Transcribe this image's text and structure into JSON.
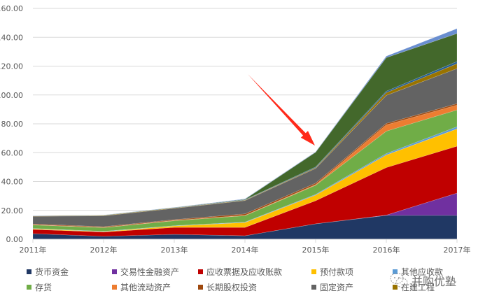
{
  "chart_data": {
    "type": "area",
    "stacked": true,
    "title": "",
    "xlabel": "",
    "ylabel": "",
    "categories": [
      "2011年",
      "2012年",
      "2013年",
      "2014年",
      "2015年",
      "2016年",
      "2017年"
    ],
    "ylim": [
      0,
      160
    ],
    "yticks": [
      "0.00",
      "20.00",
      "40.00",
      "60.00",
      "80.00",
      "100.00",
      "120.00",
      "140.00",
      "160.00"
    ],
    "grid": true,
    "legend_position": "bottom",
    "series": [
      {
        "name": "货币资金",
        "color": "#203864",
        "values": [
          3.9,
          2.0,
          3.4,
          2.4,
          10.7,
          16.5,
          16.5
        ]
      },
      {
        "name": "交易性金融资产",
        "color": "#7030A0",
        "values": [
          0,
          0,
          0,
          0,
          0,
          0.2,
          15.5
        ]
      },
      {
        "name": "应收票据及应收账款",
        "color": "#C00000",
        "values": [
          2.9,
          3.0,
          4.8,
          5.8,
          16.0,
          33.0,
          32.5
        ]
      },
      {
        "name": "预付款项",
        "color": "#FFC000",
        "values": [
          0.5,
          0.3,
          1.0,
          3.4,
          3.9,
          8.7,
          12.0
        ]
      },
      {
        "name": "其他应收款",
        "color": "#5B9BD5",
        "values": [
          0.2,
          0.2,
          0.2,
          0.3,
          0.5,
          1.0,
          1.5
        ]
      },
      {
        "name": "存货",
        "color": "#70AD47",
        "values": [
          2.4,
          2.5,
          3.4,
          4.4,
          6.3,
          15.5,
          11.6
        ]
      },
      {
        "name": "其他流动资产",
        "color": "#ED7D31",
        "values": [
          0.2,
          0.2,
          0.3,
          0.3,
          0.5,
          4.4,
          3.4
        ]
      },
      {
        "name": "长期股权投资",
        "color": "#9E480E",
        "values": [
          0.5,
          0.5,
          0.5,
          1.0,
          1.0,
          1.0,
          1.0
        ]
      },
      {
        "name": "固定资产",
        "color": "#636363",
        "values": [
          5.3,
          7.5,
          7.8,
          9.2,
          10.2,
          19.4,
          24.3
        ]
      },
      {
        "name": "在建工程",
        "color": "#997300",
        "values": [
          0.2,
          0.3,
          0.3,
          0.3,
          0.5,
          1.9,
          3.4
        ]
      },
      {
        "name": "",
        "color": "#255E91",
        "values": [
          0.1,
          0.1,
          0.2,
          0.3,
          0.5,
          1.0,
          1.5
        ]
      },
      {
        "name": "",
        "color": "#43682B",
        "values": [
          0.0,
          0.1,
          0.1,
          0.3,
          10.2,
          23.3,
          19.4
        ]
      },
      {
        "name": "",
        "color": "#698ED0",
        "values": [
          0.1,
          0.1,
          0.1,
          0.3,
          0.3,
          1.0,
          3.4
        ]
      }
    ],
    "annotations": [
      {
        "type": "arrow",
        "color": "#FF2A1A",
        "from": [
          354,
          106
        ],
        "to": [
          450,
          208
        ],
        "points_to": "2015年"
      }
    ]
  },
  "legend": {
    "rows": [
      [
        {
          "label": "货币资金",
          "color": "#203864"
        },
        {
          "label": "交易性金融资产",
          "color": "#7030A0"
        },
        {
          "label": "应收票据及应收账款",
          "color": "#C00000"
        },
        {
          "label": "预付款项",
          "color": "#FFC000"
        },
        {
          "label": "其他应收款",
          "color": "#5B9BD5"
        }
      ],
      [
        {
          "label": "存货",
          "color": "#70AD47"
        },
        {
          "label": "其他流动资产",
          "color": "#ED7D31"
        },
        {
          "label": "长期股权投资",
          "color": "#9E480E"
        },
        {
          "label": "固定资产",
          "color": "#636363"
        },
        {
          "label": "在建工程",
          "color": "#997300"
        }
      ]
    ]
  },
  "watermark": {
    "text": "并购优塾",
    "icon": "wechat-icon"
  }
}
